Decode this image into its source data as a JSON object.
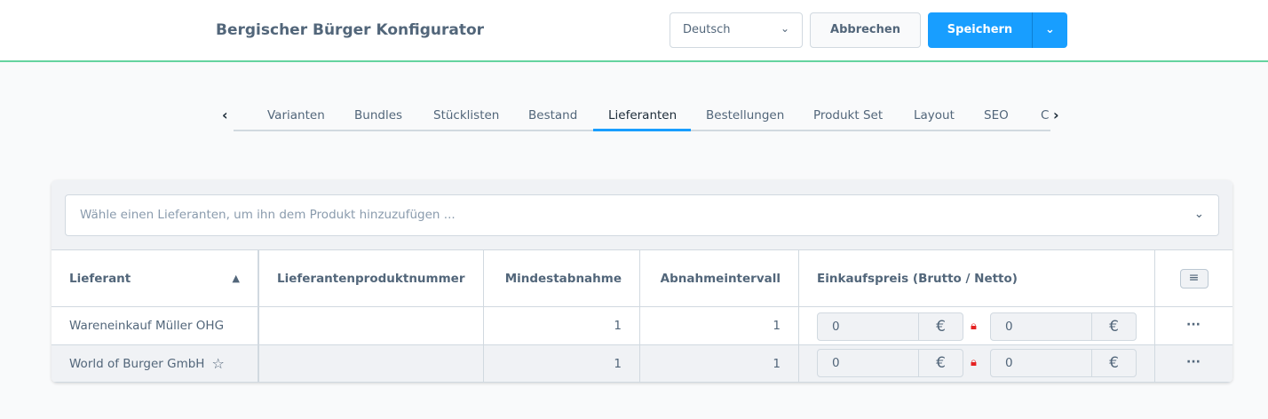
{
  "header": {
    "title": "Bergischer Bürger Konfigurator",
    "language": "Deutsch",
    "cancel": "Abbrechen",
    "save": "Speichern"
  },
  "tabs": [
    {
      "label": "Varianten"
    },
    {
      "label": "Bundles"
    },
    {
      "label": "Stücklisten"
    },
    {
      "label": "Bestand"
    },
    {
      "label": "Lieferanten",
      "active": true
    },
    {
      "label": "Bestellungen"
    },
    {
      "label": "Produkt Set"
    },
    {
      "label": "Layout"
    },
    {
      "label": "SEO"
    },
    {
      "label": "C"
    }
  ],
  "search": {
    "placeholder": "Wähle einen Lieferanten, um ihn dem Produkt hinzuzufügen ..."
  },
  "table": {
    "columns": [
      "Lieferant",
      "Lieferantenproduktnummer",
      "Mindestabnahme",
      "Abnahmeintervall",
      "Einkaufspreis (Brutto / Netto)"
    ],
    "rows": [
      {
        "supplier": "Wareneinkauf Müller OHG",
        "number": "",
        "min": "1",
        "interval": "1",
        "gross": "0",
        "net": "0",
        "currency": "€",
        "favorite": false
      },
      {
        "supplier": "World of Burger GmbH",
        "number": "",
        "min": "1",
        "interval": "1",
        "gross": "0",
        "net": "0",
        "currency": "€",
        "favorite": true
      }
    ]
  },
  "colors": {
    "accent": "#189eff",
    "header_border": "#65d39f",
    "lock": "#e52222"
  }
}
